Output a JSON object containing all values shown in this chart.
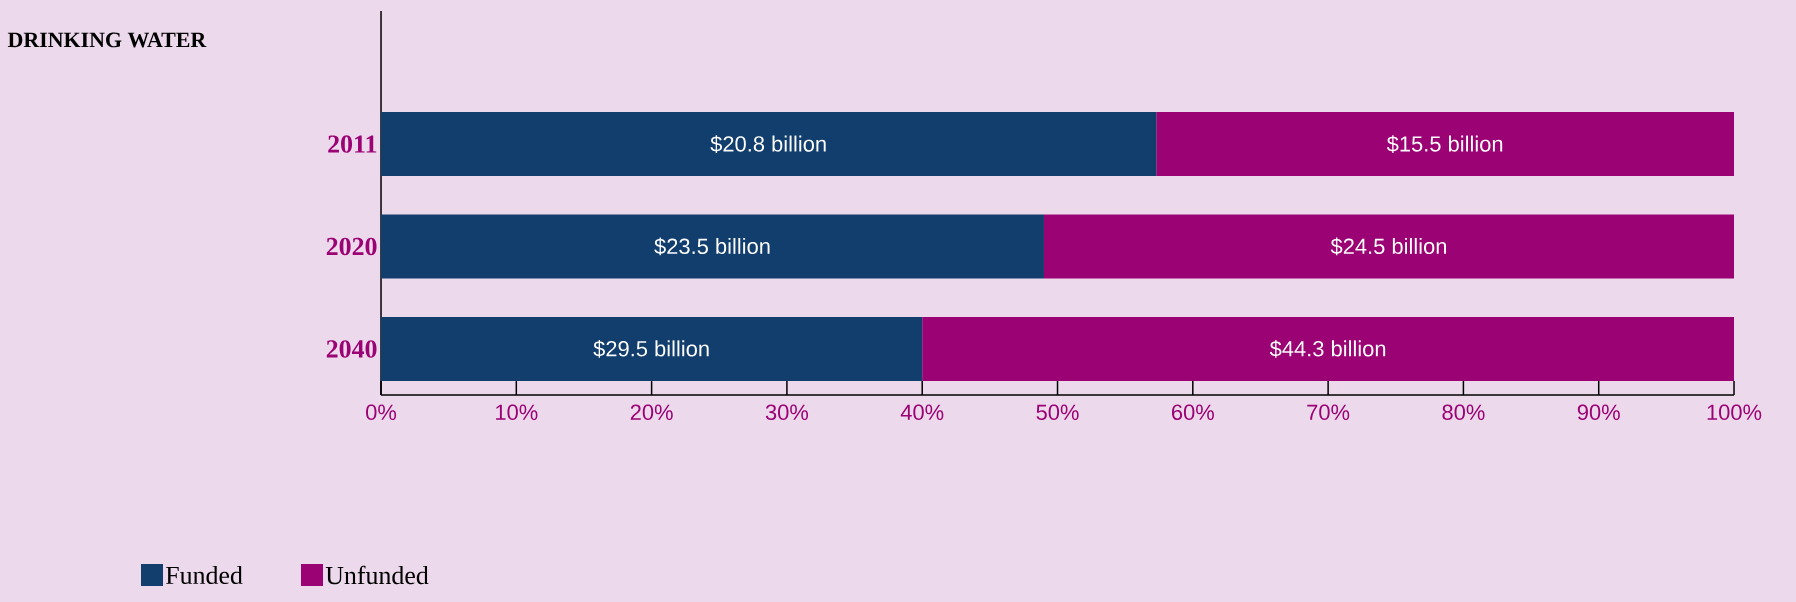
{
  "chart_data": {
    "type": "bar",
    "orientation": "horizontal",
    "stacked": true,
    "title": "DRINKING WATER",
    "categories": [
      "2011",
      "2020",
      "2040"
    ],
    "series": [
      {
        "name": "Funded",
        "color": "#123e6e",
        "values": [
          57.3,
          49.0,
          40.0
        ]
      },
      {
        "name": "Unfunded",
        "color": "#9b0274",
        "values": [
          42.7,
          51.0,
          60.0
        ]
      }
    ],
    "annotations": [
      "$20.8 billion",
      "$23.5 billion",
      "$29.5 billion",
      "$15.5 billion",
      "$24.5 billion",
      "$44.3 billion"
    ],
    "xlim": [
      0,
      100
    ],
    "xticks": [
      {
        "value": 0,
        "label": "0%"
      },
      {
        "value": 10,
        "label": "10%"
      },
      {
        "value": 20,
        "label": "20%"
      },
      {
        "value": 30,
        "label": "30%"
      },
      {
        "value": 40,
        "label": "40%"
      },
      {
        "value": 50,
        "label": "50%"
      },
      {
        "value": 60,
        "label": "60%"
      },
      {
        "value": 70,
        "label": "70%"
      },
      {
        "value": 80,
        "label": "80%"
      },
      {
        "value": 90,
        "label": "90%"
      },
      {
        "value": 100,
        "label": "100%"
      }
    ],
    "grid": false,
    "legend": "bottom left"
  }
}
